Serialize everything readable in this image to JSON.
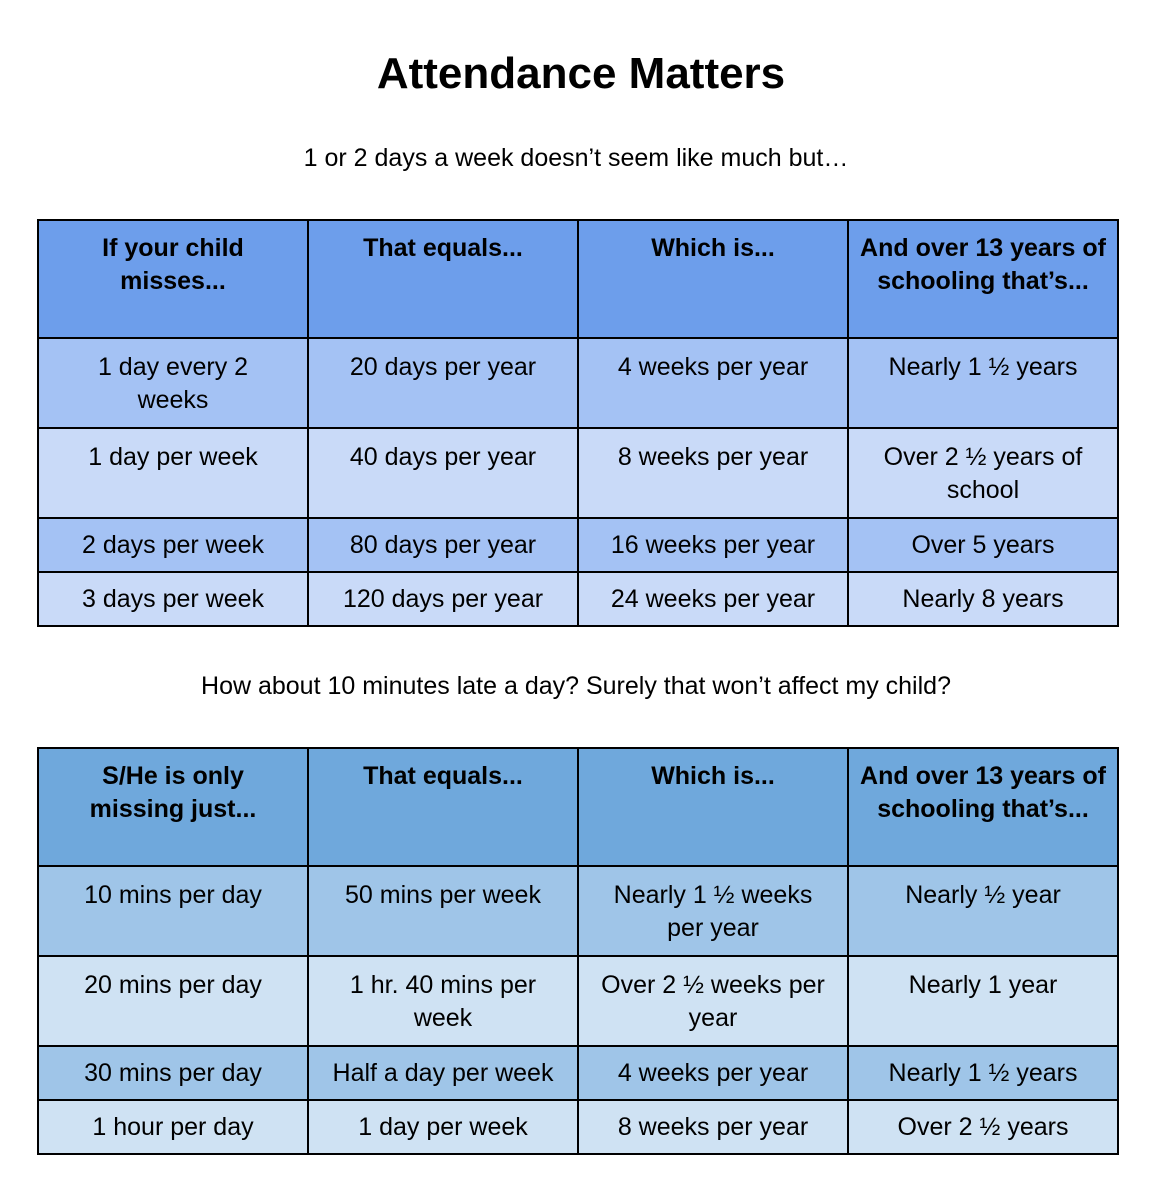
{
  "title": "Attendance Matters",
  "subtitle1": "1 or 2 days a week doesn’t seem like much but…",
  "subtitle2": "How about 10 minutes late a day? Surely that won’t affect my child?",
  "table1": {
    "headers": [
      "If your child misses...",
      "That equals...",
      "Which is...",
      "And over 13 years of schooling that’s..."
    ],
    "rows": [
      [
        "1 day every 2 weeks",
        "20 days per year",
        "4 weeks per year",
        "Nearly 1 ½ years"
      ],
      [
        "1 day per week",
        "40 days per year",
        "8 weeks per year",
        "Over 2 ½ years of school"
      ],
      [
        "2 days per week",
        "80 days per year",
        "16 weeks per year",
        "Over 5 years"
      ],
      [
        "3 days per week",
        "120 days per year",
        "24 weeks per year",
        "Nearly 8 years"
      ]
    ]
  },
  "table2": {
    "headers": [
      "S/He is only missing just...",
      "That equals...",
      "Which is...",
      "And over 13 years of schooling that’s..."
    ],
    "rows": [
      [
        "10 mins per day",
        "50 mins per week",
        "Nearly 1 ½ weeks per year",
        "Nearly ½ year"
      ],
      [
        "20 mins per day",
        "1 hr. 40 mins per week",
        "Over 2 ½ weeks per year",
        "Nearly 1 year"
      ],
      [
        "30 mins per day",
        "Half a day per week",
        "4 weeks per year",
        "Nearly 1 ½ years"
      ],
      [
        "1 hour per day",
        "1 day per week",
        "8 weeks per year",
        "Over 2 ½ years"
      ]
    ]
  },
  "colors": {
    "table1_header": "#6d9eeb",
    "table1_row_odd": "#a4c2f4",
    "table1_row_even": "#c9daf8",
    "table2_header": "#6fa8dc",
    "table2_row_odd": "#9fc5e8",
    "table2_row_even": "#cfe2f3"
  }
}
